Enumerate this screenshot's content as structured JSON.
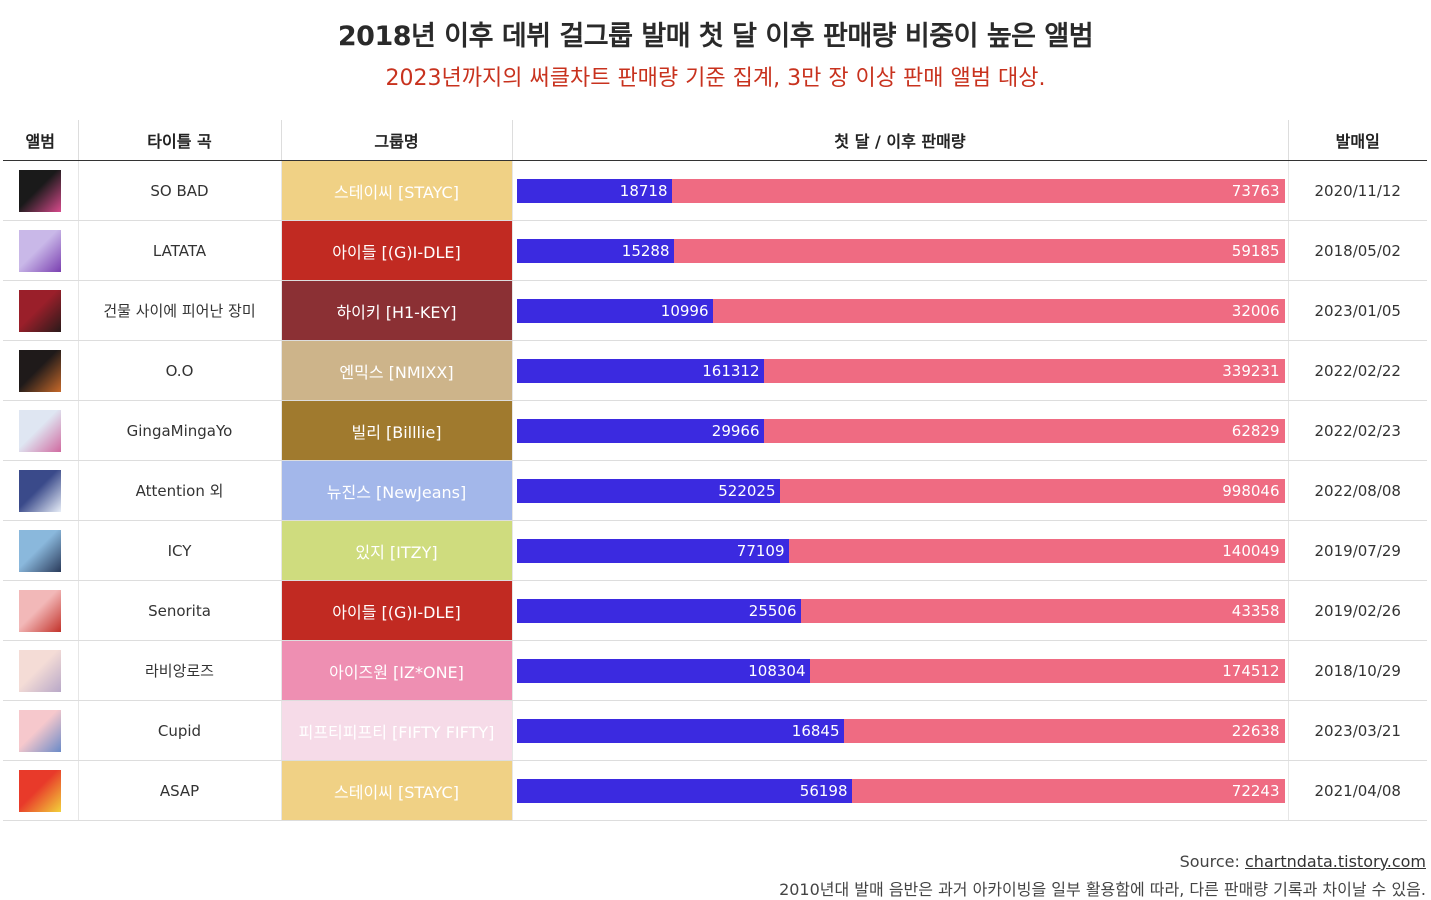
{
  "title": "2018년 이후 데뷔 걸그룹 발매 첫 달 이후 판매량 비중이 높은 앨범",
  "subtitle": "2023년까지의 써클차트 판매량 기준 집계, 3만 장 이상 판매 앨범 대상.",
  "headers": {
    "album": "앨범",
    "title_song": "타이틀 곡",
    "group": "그룹명",
    "sales": "첫 달 / 이후 판매량",
    "release": "발매일"
  },
  "colors": {
    "first_month": "#3b2ae0",
    "after": "#ef6b82",
    "title": "#2a2a2a",
    "subtitle": "#c8321e"
  },
  "rows": [
    {
      "title_song": "SO BAD",
      "group": "스테이씨 [STAYC]",
      "group_color": "#f0d185",
      "first": 18718,
      "after": 73763,
      "first_text": "18718",
      "after_text": "73763",
      "release": "2020/11/12",
      "cover_colors": [
        "#1a1a1a",
        "#d84a8c"
      ]
    },
    {
      "title_song": "LATATA",
      "group": "아이들 [(G)I-DLE]",
      "group_color": "#c12a22",
      "first": 15288,
      "after": 59185,
      "first_text": "15288",
      "after_text": "59185",
      "release": "2018/05/02",
      "cover_colors": [
        "#c9b8e8",
        "#7a3fb0"
      ]
    },
    {
      "title_song": "건물 사이에 피어난 장미",
      "group": "하이키 [H1-KEY]",
      "group_color": "#8b3034",
      "first": 10996,
      "after": 32006,
      "first_text": "10996",
      "after_text": "32006",
      "release": "2023/01/05",
      "cover_colors": [
        "#9a1f2a",
        "#2a1a1a"
      ]
    },
    {
      "title_song": "O.O",
      "group": "엔믹스 [NMIXX]",
      "group_color": "#cdb48a",
      "first": 161312,
      "after": 339231,
      "first_text": "161312",
      "after_text": "339231",
      "release": "2022/02/22",
      "cover_colors": [
        "#1f1a1a",
        "#c86a2a"
      ]
    },
    {
      "title_song": "GingaMingaYo",
      "group": "빌리 [Billlie]",
      "group_color": "#a07a2e",
      "first": 29966,
      "after": 62829,
      "first_text": "29966",
      "after_text": "62829",
      "release": "2022/02/23",
      "cover_colors": [
        "#dfe6f2",
        "#d06aa0"
      ]
    },
    {
      "title_song": "Attention 외",
      "group": "뉴진스 [NewJeans]",
      "group_color": "#a3b7ea",
      "first": 522025,
      "after": 998046,
      "first_text": "522025",
      "after_text": "998046",
      "release": "2022/08/08",
      "cover_colors": [
        "#3a4a8a",
        "#e8eef8"
      ]
    },
    {
      "title_song": "ICY",
      "group": "있지 [ITZY]",
      "group_color": "#cfdc7e",
      "first": 77109,
      "after": 140049,
      "first_text": "77109",
      "after_text": "140049",
      "release": "2019/07/29",
      "cover_colors": [
        "#8ab8dc",
        "#2a3a5a"
      ]
    },
    {
      "title_song": "Senorita",
      "group": "아이들 [(G)I-DLE]",
      "group_color": "#c12a22",
      "first": 25506,
      "after": 43358,
      "first_text": "25506",
      "after_text": "43358",
      "release": "2019/02/26",
      "cover_colors": [
        "#f2b8b8",
        "#c2322a"
      ]
    },
    {
      "title_song": "라비앙로즈",
      "group": "아이즈원 [IZ*ONE]",
      "group_color": "#ee8fb2",
      "first": 108304,
      "after": 174512,
      "first_text": "108304",
      "after_text": "174512",
      "release": "2018/10/29",
      "cover_colors": [
        "#f4dcd6",
        "#b8a8c8"
      ]
    },
    {
      "title_song": "Cupid",
      "group": "피프티피프티 [FIFTY FIFTY]",
      "group_color": "#f6dbe8",
      "first": 16845,
      "after": 22638,
      "first_text": "16845",
      "after_text": "22638",
      "release": "2023/03/21",
      "cover_colors": [
        "#f6c8cc",
        "#6a8ac8"
      ]
    },
    {
      "title_song": "ASAP",
      "group": "스테이씨 [STAYC]",
      "group_color": "#f0d185",
      "first": 56198,
      "after": 72243,
      "first_text": "56198",
      "after_text": "72243",
      "release": "2021/04/08",
      "cover_colors": [
        "#e83a2a",
        "#f2d23a"
      ]
    }
  ],
  "chart_data": {
    "type": "bar",
    "stacked": true,
    "normalized": true,
    "categories": [
      "SO BAD",
      "LATATA",
      "건물 사이에 피어난 장미",
      "O.O",
      "GingaMingaYo",
      "Attention 외",
      "ICY",
      "Senorita",
      "라비앙로즈",
      "Cupid",
      "ASAP"
    ],
    "series": [
      {
        "values": [
          18718,
          15288,
          10996,
          161312,
          29966,
          522025,
          77109,
          25506,
          108304,
          16845,
          56198
        ]
      },
      {
        "values": [
          73763,
          59185,
          32006,
          339231,
          62829,
          998046,
          140049,
          43358,
          174512,
          22638,
          72243
        ]
      }
    ],
    "title": "2018년 이후 데뷔 걸그룹 발매 첫 달 이후 판매량 비중이 높은 앨범",
    "subtitle": "2023년까지의 써클차트 판매량 기준 집계, 3만 장 이상 판매 앨범 대상."
  },
  "footer": {
    "source_label": "Source: ",
    "source_link": "chartndata.tistory.com",
    "note": "2010년대 발매 음반은 과거 아카이빙을 일부 활용함에 따라, 다른 판매량 기록과 차이날 수 있음."
  }
}
